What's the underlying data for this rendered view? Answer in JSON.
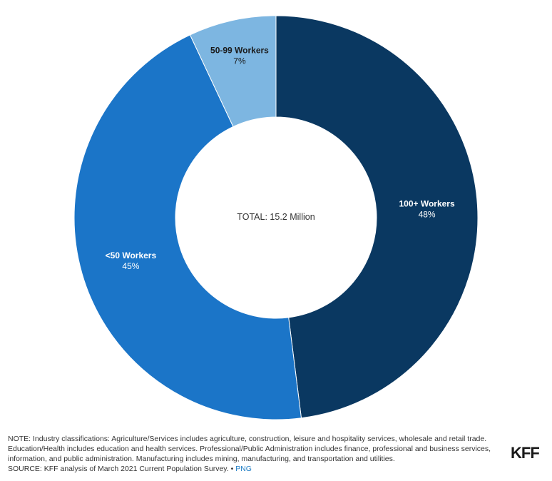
{
  "chart_data": {
    "type": "pie",
    "center_label": "TOTAL: 15.2 Million",
    "slices": [
      {
        "label": "100+ Workers",
        "value": 48,
        "value_label": "48%",
        "color": "#0a3861",
        "text_color": "#ffffff"
      },
      {
        "label": "<50 Workers",
        "value": 45,
        "value_label": "45%",
        "color": "#1b75c8",
        "text_color": "#ffffff"
      },
      {
        "label": "50-99 Workers",
        "value": 7,
        "value_label": "7%",
        "color": "#7db6e1",
        "text_color": "#1a1a1a"
      }
    ]
  },
  "footer": {
    "note": "NOTE: Industry classifications: Agriculture/Services includes agriculture, construction, leisure and hospitality services, wholesale and retail trade. Education/Health includes education and health services. Professional/Public Administration includes finance, professional and business services, information, and public administration. Manufacturing includes mining, manufacturing, and transportation and utilities.",
    "source": "SOURCE: KFF analysis of March 2021 Current Population Survey. • ",
    "png_label": "PNG"
  },
  "logo": "KFF"
}
